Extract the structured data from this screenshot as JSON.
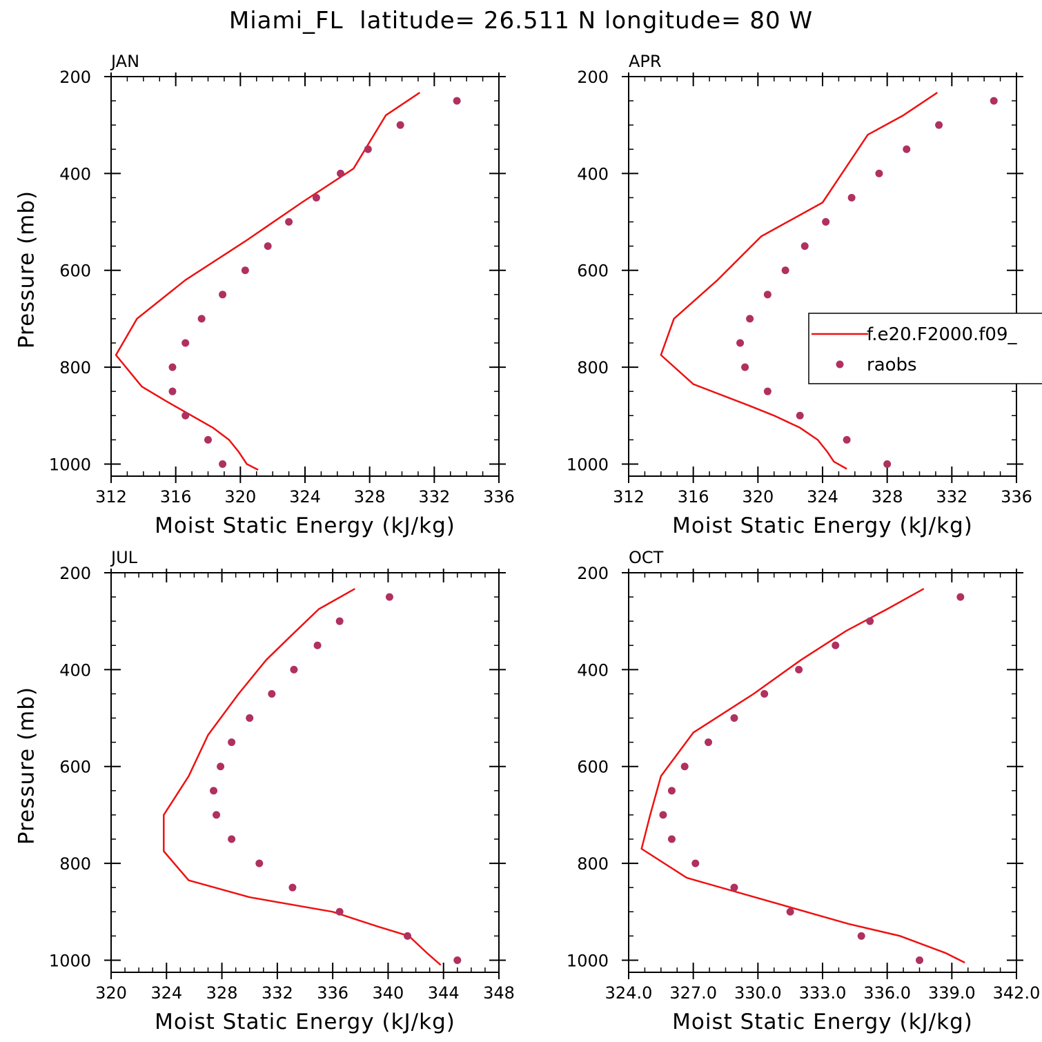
{
  "figure": {
    "title": "Miami_FL  latitude= 26.511 N longitude= 80 W"
  },
  "chart_data": [
    {
      "type": "line",
      "panel_label": "JAN",
      "xlabel": "Moist Static Energy (kJ/kg)",
      "ylabel": "Pressure (mb)",
      "xlim": [
        312,
        336
      ],
      "ylim": [
        1025,
        200
      ],
      "y_reversed": true,
      "xticks": [
        "312",
        "316",
        "320",
        "324",
        "328",
        "332",
        "336"
      ],
      "xtick_values": [
        312,
        316,
        320,
        324,
        328,
        332,
        336
      ],
      "x_minor_step": 1,
      "yticks": [
        "200",
        "400",
        "600",
        "800",
        "1000"
      ],
      "ytick_values": [
        200,
        400,
        600,
        800,
        1000
      ],
      "y_minor_step": 50,
      "series": [
        {
          "name": "f.e20.F2000.f09_",
          "style": "line",
          "color": "#ee1111",
          "x": [
            321.1,
            320.4,
            319.9,
            319.3,
            318.3,
            315.4,
            313.9,
            312.3,
            313.6,
            316.6,
            320.3,
            323.8,
            327.0,
            329.0,
            331.1
          ],
          "y": [
            1012,
            1000,
            975,
            950,
            925,
            870,
            840,
            775,
            700,
            620,
            540,
            460,
            390,
            280,
            233
          ]
        },
        {
          "name": "raobs",
          "style": "points",
          "color": "#b03060",
          "x": [
            318.9,
            318.0,
            316.6,
            315.8,
            315.8,
            316.6,
            317.6,
            318.9,
            320.3,
            321.7,
            323.0,
            324.7,
            326.2,
            327.9,
            329.9,
            333.4
          ],
          "y": [
            1000,
            950,
            900,
            850,
            800,
            750,
            700,
            650,
            600,
            550,
            500,
            450,
            400,
            350,
            300,
            250
          ]
        }
      ]
    },
    {
      "type": "line",
      "panel_label": "APR",
      "xlabel": "Moist Static Energy (kJ/kg)",
      "ylabel": "",
      "xlim": [
        312,
        336
      ],
      "ylim": [
        1025,
        200
      ],
      "y_reversed": true,
      "xticks": [
        "312",
        "316",
        "320",
        "324",
        "328",
        "332",
        "336"
      ],
      "xtick_values": [
        312,
        316,
        320,
        324,
        328,
        332,
        336
      ],
      "x_minor_step": 1,
      "yticks": [
        "200",
        "400",
        "600",
        "800",
        "1000"
      ],
      "ytick_values": [
        200,
        400,
        600,
        800,
        1000
      ],
      "y_minor_step": 50,
      "legend": {
        "position": "right",
        "entries": [
          "f.e20.F2000.f09_",
          "raobs"
        ]
      },
      "series": [
        {
          "name": "f.e20.F2000.f09_",
          "style": "line",
          "color": "#ee1111",
          "x": [
            325.5,
            324.7,
            324.3,
            323.7,
            322.6,
            321.0,
            319.5,
            316.0,
            314.0,
            314.8,
            317.5,
            320.2,
            324.0,
            326.8,
            329.0,
            331.1
          ],
          "y": [
            1010,
            995,
            975,
            950,
            925,
            900,
            880,
            835,
            775,
            700,
            620,
            530,
            460,
            320,
            280,
            233
          ]
        },
        {
          "name": "raobs",
          "style": "points",
          "color": "#b03060",
          "x": [
            328.0,
            325.5,
            322.6,
            320.6,
            319.2,
            318.9,
            319.5,
            320.6,
            321.7,
            322.9,
            324.2,
            325.8,
            327.5,
            329.2,
            331.2,
            334.6
          ],
          "y": [
            1000,
            950,
            900,
            850,
            800,
            750,
            700,
            650,
            600,
            550,
            500,
            450,
            400,
            350,
            300,
            250
          ]
        }
      ]
    },
    {
      "type": "line",
      "panel_label": "JUL",
      "xlabel": "Moist Static Energy (kJ/kg)",
      "ylabel": "Pressure (mb)",
      "xlim": [
        320,
        348
      ],
      "ylim": [
        1025,
        200
      ],
      "y_reversed": true,
      "xticks": [
        "320",
        "324",
        "328",
        "332",
        "336",
        "340",
        "344",
        "348"
      ],
      "xtick_values": [
        320,
        324,
        328,
        332,
        336,
        340,
        344,
        348
      ],
      "x_minor_step": 1,
      "yticks": [
        "200",
        "400",
        "600",
        "800",
        "1000"
      ],
      "ytick_values": [
        200,
        400,
        600,
        800,
        1000
      ],
      "y_minor_step": 50,
      "series": [
        {
          "name": "f.e20.F2000.f09_",
          "style": "line",
          "color": "#ee1111",
          "x": [
            343.8,
            342.8,
            341.5,
            339.2,
            336.0,
            330.0,
            325.6,
            323.8,
            323.8,
            325.6,
            327.0,
            329.2,
            331.2,
            333.0,
            335.0,
            337.6
          ],
          "y": [
            1010,
            985,
            950,
            930,
            900,
            870,
            835,
            775,
            700,
            620,
            535,
            450,
            380,
            330,
            275,
            233
          ]
        },
        {
          "name": "raobs",
          "style": "points",
          "color": "#b03060",
          "x": [
            345.0,
            341.4,
            336.5,
            333.1,
            330.7,
            328.7,
            327.6,
            327.4,
            327.9,
            328.7,
            330.0,
            331.6,
            333.2,
            334.9,
            336.5,
            340.1
          ],
          "y": [
            1000,
            950,
            900,
            850,
            800,
            750,
            700,
            650,
            600,
            550,
            500,
            450,
            400,
            350,
            300,
            250
          ]
        }
      ]
    },
    {
      "type": "line",
      "panel_label": "OCT",
      "xlabel": "Moist Static Energy (kJ/kg)",
      "ylabel": "",
      "xlim": [
        324,
        342
      ],
      "ylim": [
        1025,
        200
      ],
      "y_reversed": true,
      "xticks": [
        "324.0",
        "327.0",
        "330.0",
        "333.0",
        "336.0",
        "339.0",
        "342.0"
      ],
      "xtick_values": [
        324,
        327,
        330,
        333,
        336,
        339,
        342
      ],
      "x_minor_step": 0.75,
      "yticks": [
        "200",
        "400",
        "600",
        "800",
        "1000"
      ],
      "ytick_values": [
        200,
        400,
        600,
        800,
        1000
      ],
      "y_minor_step": 50,
      "series": [
        {
          "name": "f.e20.F2000.f09_",
          "style": "line",
          "color": "#ee1111",
          "x": [
            339.6,
            338.7,
            337.8,
            336.6,
            334.2,
            326.7,
            324.6,
            325.0,
            325.5,
            327.0,
            329.8,
            332.0,
            334.1,
            336.0,
            337.7
          ],
          "y": [
            1005,
            985,
            970,
            950,
            925,
            830,
            770,
            700,
            620,
            530,
            450,
            380,
            320,
            275,
            233
          ]
        },
        {
          "name": "raobs",
          "style": "points",
          "color": "#b03060",
          "x": [
            337.5,
            334.8,
            331.5,
            328.9,
            327.1,
            326.0,
            325.6,
            326.0,
            326.6,
            327.7,
            328.9,
            330.3,
            331.9,
            333.6,
            335.2,
            339.4
          ],
          "y": [
            1000,
            950,
            900,
            850,
            800,
            750,
            700,
            650,
            600,
            550,
            500,
            450,
            400,
            350,
            300,
            250
          ]
        }
      ]
    }
  ]
}
